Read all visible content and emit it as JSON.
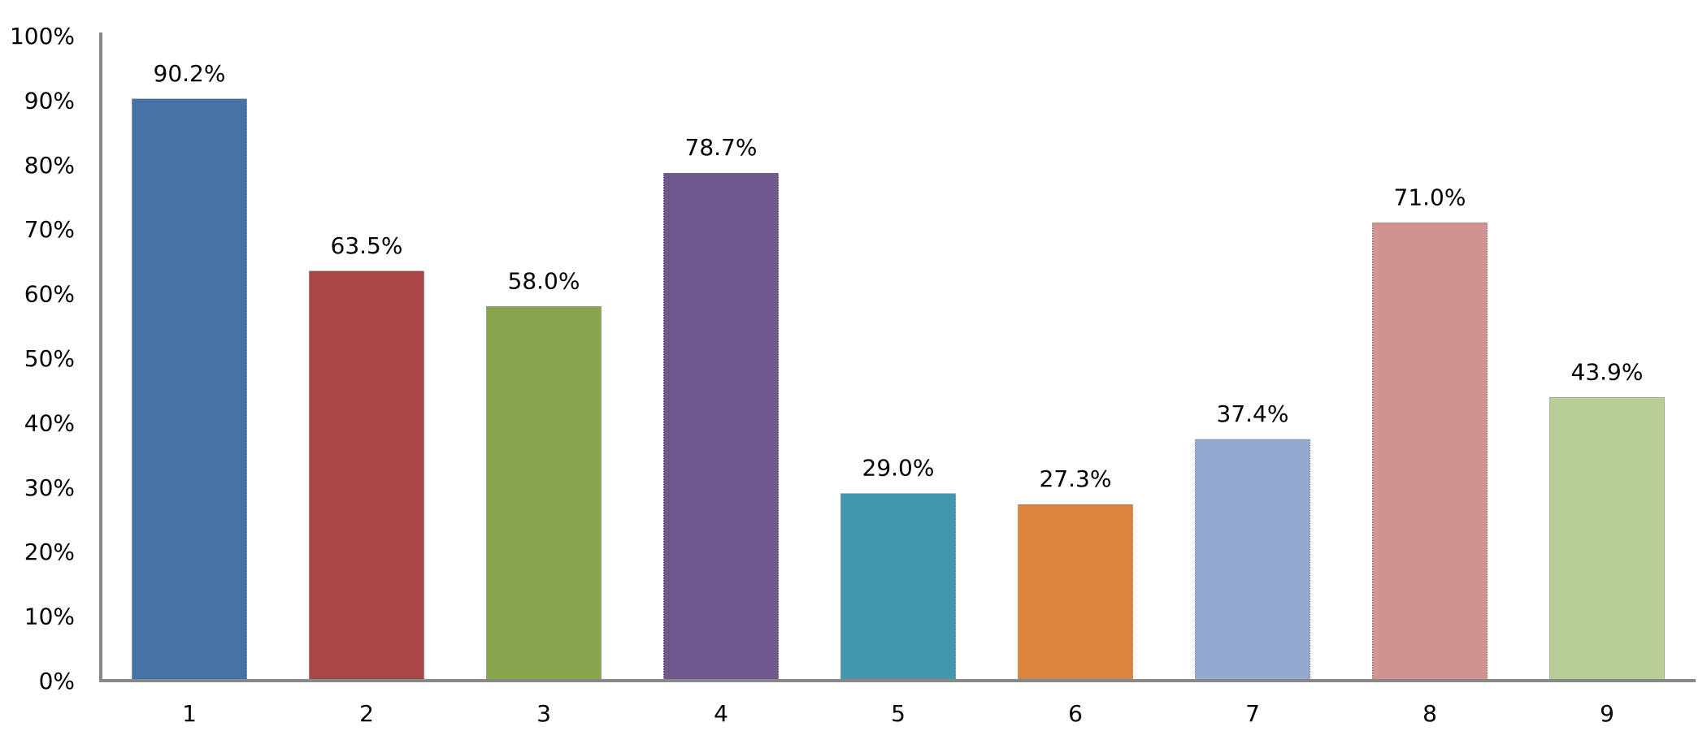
{
  "chart_data": {
    "type": "bar",
    "title": "",
    "xlabel": "",
    "ylabel": "",
    "categories": [
      "1",
      "2",
      "3",
      "4",
      "5",
      "6",
      "7",
      "8",
      "9"
    ],
    "values": [
      90.2,
      63.5,
      58.0,
      78.7,
      29.0,
      27.3,
      37.4,
      71.0,
      43.9
    ],
    "data_labels": [
      "90.2%",
      "63.5%",
      "58.0%",
      "78.7%",
      "29.0%",
      "27.3%",
      "37.4%",
      "71.0%",
      "43.9%"
    ],
    "colors": [
      "#4573A7",
      "#AA4643",
      "#89A54E",
      "#71588F",
      "#4198AF",
      "#DB843D",
      "#93A9CF",
      "#D19392",
      "#B9CD96"
    ],
    "ylim": [
      0,
      100
    ],
    "yticks": [
      0,
      10,
      20,
      30,
      40,
      50,
      60,
      70,
      80,
      90,
      100
    ],
    "ytick_labels": [
      "0%",
      "10%",
      "20%",
      "30%",
      "40%",
      "50%",
      "60%",
      "70%",
      "80%",
      "90%",
      "100%"
    ],
    "grid": false,
    "legend": "none"
  }
}
